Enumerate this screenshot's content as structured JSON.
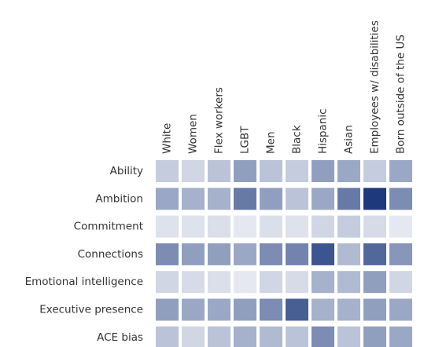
{
  "chart_data": {
    "type": "heatmap",
    "categories": [
      "White",
      "Women",
      "Flex workers",
      "LGBT",
      "Men",
      "Black",
      "Hispanic",
      "Asian",
      "Employees w/ disabilities",
      "Born outside of the US"
    ],
    "rows": [
      "Ability",
      "Ambition",
      "Commitment",
      "Connections",
      "Emotional intelligence",
      "Executive presence",
      "ACE bias"
    ],
    "values": [
      [
        20,
        15,
        25,
        45,
        25,
        20,
        45,
        40,
        20,
        40
      ],
      [
        40,
        35,
        35,
        65,
        45,
        25,
        40,
        65,
        100,
        55
      ],
      [
        8,
        8,
        10,
        5,
        10,
        8,
        15,
        20,
        12,
        5
      ],
      [
        55,
        45,
        45,
        40,
        55,
        60,
        85,
        30,
        75,
        50
      ],
      [
        15,
        12,
        10,
        5,
        15,
        12,
        35,
        30,
        45,
        15
      ],
      [
        45,
        40,
        40,
        45,
        55,
        80,
        35,
        35,
        45,
        40
      ],
      [
        25,
        15,
        25,
        35,
        30,
        25,
        55,
        25,
        45,
        40
      ]
    ],
    "vlim": [
      0,
      100
    ],
    "colors": [
      "#eff1f6",
      "#1e3a7c"
    ]
  }
}
